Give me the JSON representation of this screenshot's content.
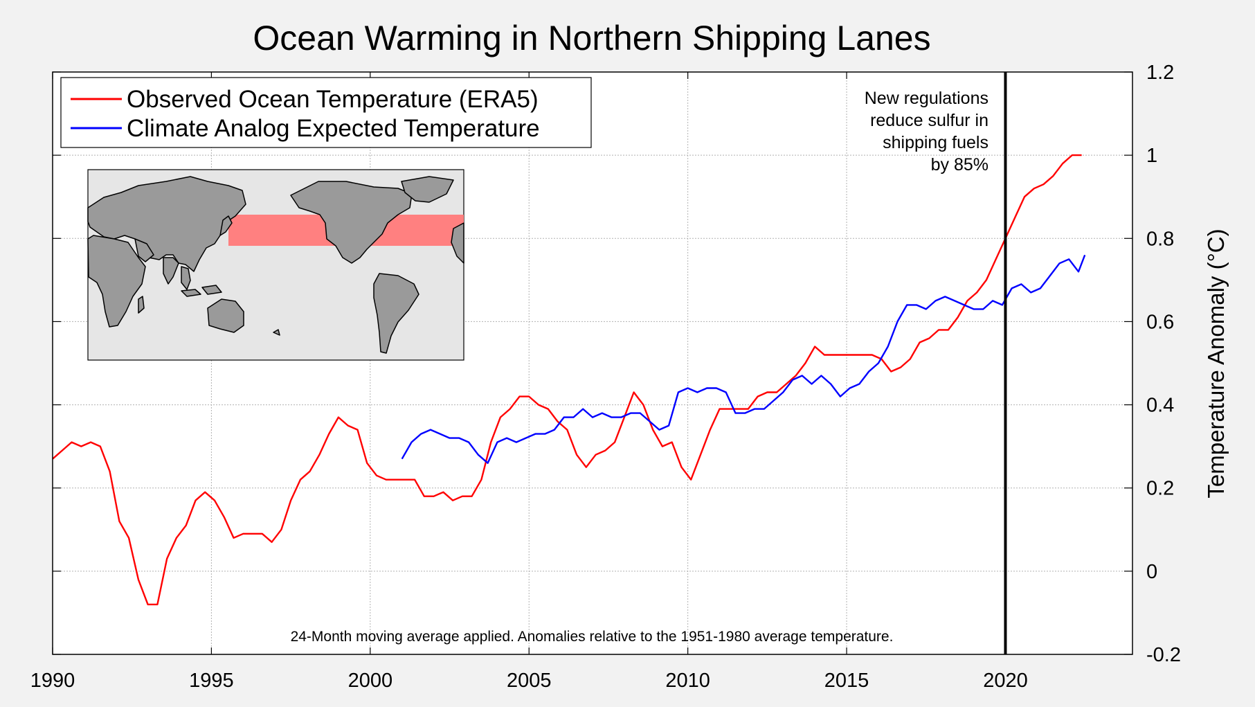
{
  "chart_data": {
    "type": "line",
    "title": "Ocean Warming in Northern Shipping Lanes",
    "ylabel": "Temperature Anomaly (°C)",
    "xlabel": "",
    "xlim": [
      1990,
      2024
    ],
    "ylim": [
      -0.2,
      1.2
    ],
    "x_ticks": [
      "1990",
      "1995",
      "2000",
      "2005",
      "2010",
      "2015",
      "2020"
    ],
    "x_tick_values": [
      1990,
      1995,
      2000,
      2005,
      2010,
      2015,
      2020
    ],
    "y_ticks": [
      "1.2",
      "1",
      "0.8",
      "0.6",
      "0.4",
      "0.2",
      "0",
      "-0.2"
    ],
    "y_tick_values": [
      1.2,
      1.0,
      0.8,
      0.6,
      0.4,
      0.2,
      0.0,
      -0.2
    ],
    "grid": true,
    "legend_position": "top-left",
    "series": [
      {
        "name": "Observed Ocean Temperature (ERA5)",
        "color": "#ff0000",
        "x": [
          1990.0,
          1990.3,
          1990.6,
          1990.9,
          1991.2,
          1991.5,
          1991.8,
          1992.1,
          1992.4,
          1992.7,
          1993.0,
          1993.3,
          1993.6,
          1993.9,
          1994.2,
          1994.5,
          1994.8,
          1995.1,
          1995.4,
          1995.7,
          1996.0,
          1996.3,
          1996.6,
          1996.9,
          1997.2,
          1997.5,
          1997.8,
          1998.1,
          1998.4,
          1998.7,
          1999.0,
          1999.3,
          1999.6,
          1999.9,
          2000.2,
          2000.5,
          2000.8,
          2001.1,
          2001.4,
          2001.7,
          2002.0,
          2002.3,
          2002.6,
          2002.9,
          2003.2,
          2003.5,
          2003.8,
          2004.1,
          2004.4,
          2004.7,
          2005.0,
          2005.3,
          2005.6,
          2005.9,
          2006.2,
          2006.5,
          2006.8,
          2007.1,
          2007.4,
          2007.7,
          2008.0,
          2008.3,
          2008.6,
          2008.9,
          2009.2,
          2009.5,
          2009.8,
          2010.1,
          2010.4,
          2010.7,
          2011.0,
          2011.3,
          2011.6,
          2011.9,
          2012.2,
          2012.5,
          2012.8,
          2013.1,
          2013.4,
          2013.7,
          2014.0,
          2014.3,
          2014.6,
          2014.9,
          2015.2,
          2015.5,
          2015.8,
          2016.1,
          2016.4,
          2016.7,
          2017.0,
          2017.3,
          2017.6,
          2017.9,
          2018.2,
          2018.5,
          2018.8,
          2019.1,
          2019.4,
          2019.7,
          2020.0,
          2020.3,
          2020.6,
          2020.9,
          2021.2,
          2021.5,
          2021.8,
          2022.1,
          2022.4
        ],
        "y": [
          0.27,
          0.29,
          0.31,
          0.3,
          0.31,
          0.3,
          0.24,
          0.12,
          0.08,
          -0.02,
          -0.08,
          -0.08,
          0.03,
          0.08,
          0.11,
          0.17,
          0.19,
          0.17,
          0.13,
          0.08,
          0.09,
          0.09,
          0.09,
          0.07,
          0.1,
          0.17,
          0.22,
          0.24,
          0.28,
          0.33,
          0.37,
          0.35,
          0.34,
          0.26,
          0.23,
          0.22,
          0.22,
          0.22,
          0.22,
          0.18,
          0.18,
          0.19,
          0.17,
          0.18,
          0.18,
          0.22,
          0.31,
          0.37,
          0.39,
          0.42,
          0.42,
          0.4,
          0.39,
          0.36,
          0.34,
          0.28,
          0.25,
          0.28,
          0.29,
          0.31,
          0.37,
          0.43,
          0.4,
          0.34,
          0.3,
          0.31,
          0.25,
          0.22,
          0.28,
          0.34,
          0.39,
          0.39,
          0.39,
          0.39,
          0.42,
          0.43,
          0.43,
          0.45,
          0.47,
          0.5,
          0.54,
          0.52,
          0.52,
          0.52,
          0.52,
          0.52,
          0.52,
          0.51,
          0.48,
          0.49,
          0.51,
          0.55,
          0.56,
          0.58,
          0.58,
          0.61,
          0.65,
          0.67,
          0.7,
          0.75,
          0.8,
          0.85,
          0.9,
          0.92,
          0.93,
          0.95,
          0.98,
          1.0,
          1.0
        ]
      },
      {
        "name": "Climate Analog Expected Temperature",
        "color": "#0000ff",
        "x": [
          2001.0,
          2001.3,
          2001.6,
          2001.9,
          2002.2,
          2002.5,
          2002.8,
          2003.1,
          2003.4,
          2003.7,
          2004.0,
          2004.3,
          2004.6,
          2004.9,
          2005.2,
          2005.5,
          2005.8,
          2006.1,
          2006.4,
          2006.7,
          2007.0,
          2007.3,
          2007.6,
          2007.9,
          2008.2,
          2008.5,
          2008.8,
          2009.1,
          2009.4,
          2009.7,
          2010.0,
          2010.3,
          2010.6,
          2010.9,
          2011.2,
          2011.5,
          2011.8,
          2012.1,
          2012.4,
          2012.7,
          2013.0,
          2013.3,
          2013.6,
          2013.9,
          2014.2,
          2014.5,
          2014.8,
          2015.1,
          2015.4,
          2015.7,
          2016.0,
          2016.3,
          2016.6,
          2016.9,
          2017.2,
          2017.5,
          2017.8,
          2018.1,
          2018.4,
          2018.7,
          2019.0,
          2019.3,
          2019.6,
          2019.9,
          2020.2,
          2020.5,
          2020.8,
          2021.1,
          2021.4,
          2021.7,
          2022.0,
          2022.3,
          2022.5
        ],
        "y": [
          0.27,
          0.31,
          0.33,
          0.34,
          0.33,
          0.32,
          0.32,
          0.31,
          0.28,
          0.26,
          0.31,
          0.32,
          0.31,
          0.32,
          0.33,
          0.33,
          0.34,
          0.37,
          0.37,
          0.39,
          0.37,
          0.38,
          0.37,
          0.37,
          0.38,
          0.38,
          0.36,
          0.34,
          0.35,
          0.43,
          0.44,
          0.43,
          0.44,
          0.44,
          0.43,
          0.38,
          0.38,
          0.39,
          0.39,
          0.41,
          0.43,
          0.46,
          0.47,
          0.45,
          0.47,
          0.45,
          0.42,
          0.44,
          0.45,
          0.48,
          0.5,
          0.54,
          0.6,
          0.64,
          0.64,
          0.63,
          0.65,
          0.66,
          0.65,
          0.64,
          0.63,
          0.63,
          0.65,
          0.64,
          0.68,
          0.69,
          0.67,
          0.68,
          0.71,
          0.74,
          0.75,
          0.72,
          0.76
        ]
      }
    ],
    "vertical_line": {
      "x": 2020.0,
      "color": "#000000"
    },
    "annotation": {
      "lines": [
        "New regulations",
        "reduce sulfur in",
        "shipping fuels",
        "by 85%"
      ]
    },
    "footnote": "24-Month moving average applied.  Anomalies relative to the 1951-1980 average temperature."
  },
  "inset_map": {
    "description_icon": "world-map-icon",
    "land_color": "#9a9a9a",
    "ocean_color": "#e6e6e6",
    "highlight_color": "#ff8080"
  }
}
